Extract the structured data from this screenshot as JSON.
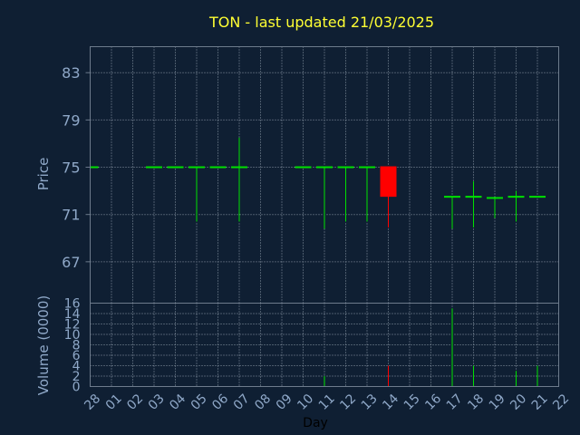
{
  "chart_data": {
    "type": "candlestick",
    "title": "TON - last updated 21/03/2025",
    "xlabel": "Day",
    "ylabel": "Price",
    "volume_label": "Volume (0000)",
    "x_ticks": [
      "28",
      "01",
      "02",
      "03",
      "04",
      "05",
      "06",
      "07",
      "08",
      "09",
      "10",
      "11",
      "12",
      "13",
      "14",
      "15",
      "16",
      "17",
      "18",
      "19",
      "20",
      "21",
      "22"
    ],
    "price_ticks": [
      67,
      71,
      75,
      79,
      83
    ],
    "price_ylim": [
      63.5,
      85.2
    ],
    "volume_ticks": [
      0,
      2,
      4,
      6,
      8,
      10,
      12,
      14,
      16
    ],
    "volume_ylim": [
      0,
      16
    ],
    "grid": true,
    "candles": [
      {
        "day": "28",
        "open": 75.0,
        "high": 75.0,
        "low": 75.0,
        "close": 75.0,
        "volume": 0
      },
      {
        "day": "03",
        "open": 75.0,
        "high": 75.0,
        "low": 75.0,
        "close": 75.0,
        "volume": 0
      },
      {
        "day": "04",
        "open": 75.0,
        "high": 75.0,
        "low": 75.0,
        "close": 75.0,
        "volume": 0
      },
      {
        "day": "05",
        "open": 75.0,
        "high": 75.0,
        "low": 70.4,
        "close": 75.0,
        "volume": 0
      },
      {
        "day": "06",
        "open": 75.0,
        "high": 75.0,
        "low": 75.0,
        "close": 75.0,
        "volume": 0
      },
      {
        "day": "07",
        "open": 75.0,
        "high": 77.5,
        "low": 70.4,
        "close": 75.0,
        "volume": 0
      },
      {
        "day": "10",
        "open": 75.0,
        "high": 75.0,
        "low": 75.0,
        "close": 75.0,
        "volume": 0
      },
      {
        "day": "11",
        "open": 75.0,
        "high": 75.0,
        "low": 69.8,
        "close": 75.0,
        "volume": 2
      },
      {
        "day": "12",
        "open": 75.0,
        "high": 75.0,
        "low": 70.4,
        "close": 75.0,
        "volume": 0
      },
      {
        "day": "13",
        "open": 75.0,
        "high": 75.0,
        "low": 70.4,
        "close": 75.0,
        "volume": 0
      },
      {
        "day": "14",
        "open": 75.0,
        "high": 75.0,
        "low": 69.9,
        "close": 72.5,
        "volume": 4
      },
      {
        "day": "17",
        "open": 72.5,
        "high": 72.5,
        "low": 69.8,
        "close": 72.5,
        "volume": 15
      },
      {
        "day": "18",
        "open": 72.5,
        "high": 73.8,
        "low": 69.9,
        "close": 72.5,
        "volume": 4
      },
      {
        "day": "19",
        "open": 72.4,
        "high": 72.4,
        "low": 70.7,
        "close": 72.4,
        "volume": 0
      },
      {
        "day": "20",
        "open": 72.5,
        "high": 73.0,
        "low": 70.4,
        "close": 72.5,
        "volume": 3
      },
      {
        "day": "21",
        "open": 72.5,
        "high": 72.5,
        "low": 72.5,
        "close": 72.5,
        "volume": 4
      }
    ],
    "colors": {
      "background": "#0f1f33",
      "up": "#00e000",
      "down": "#ff0000",
      "title": "#ffff33",
      "tick": "#8fa8c8"
    }
  }
}
